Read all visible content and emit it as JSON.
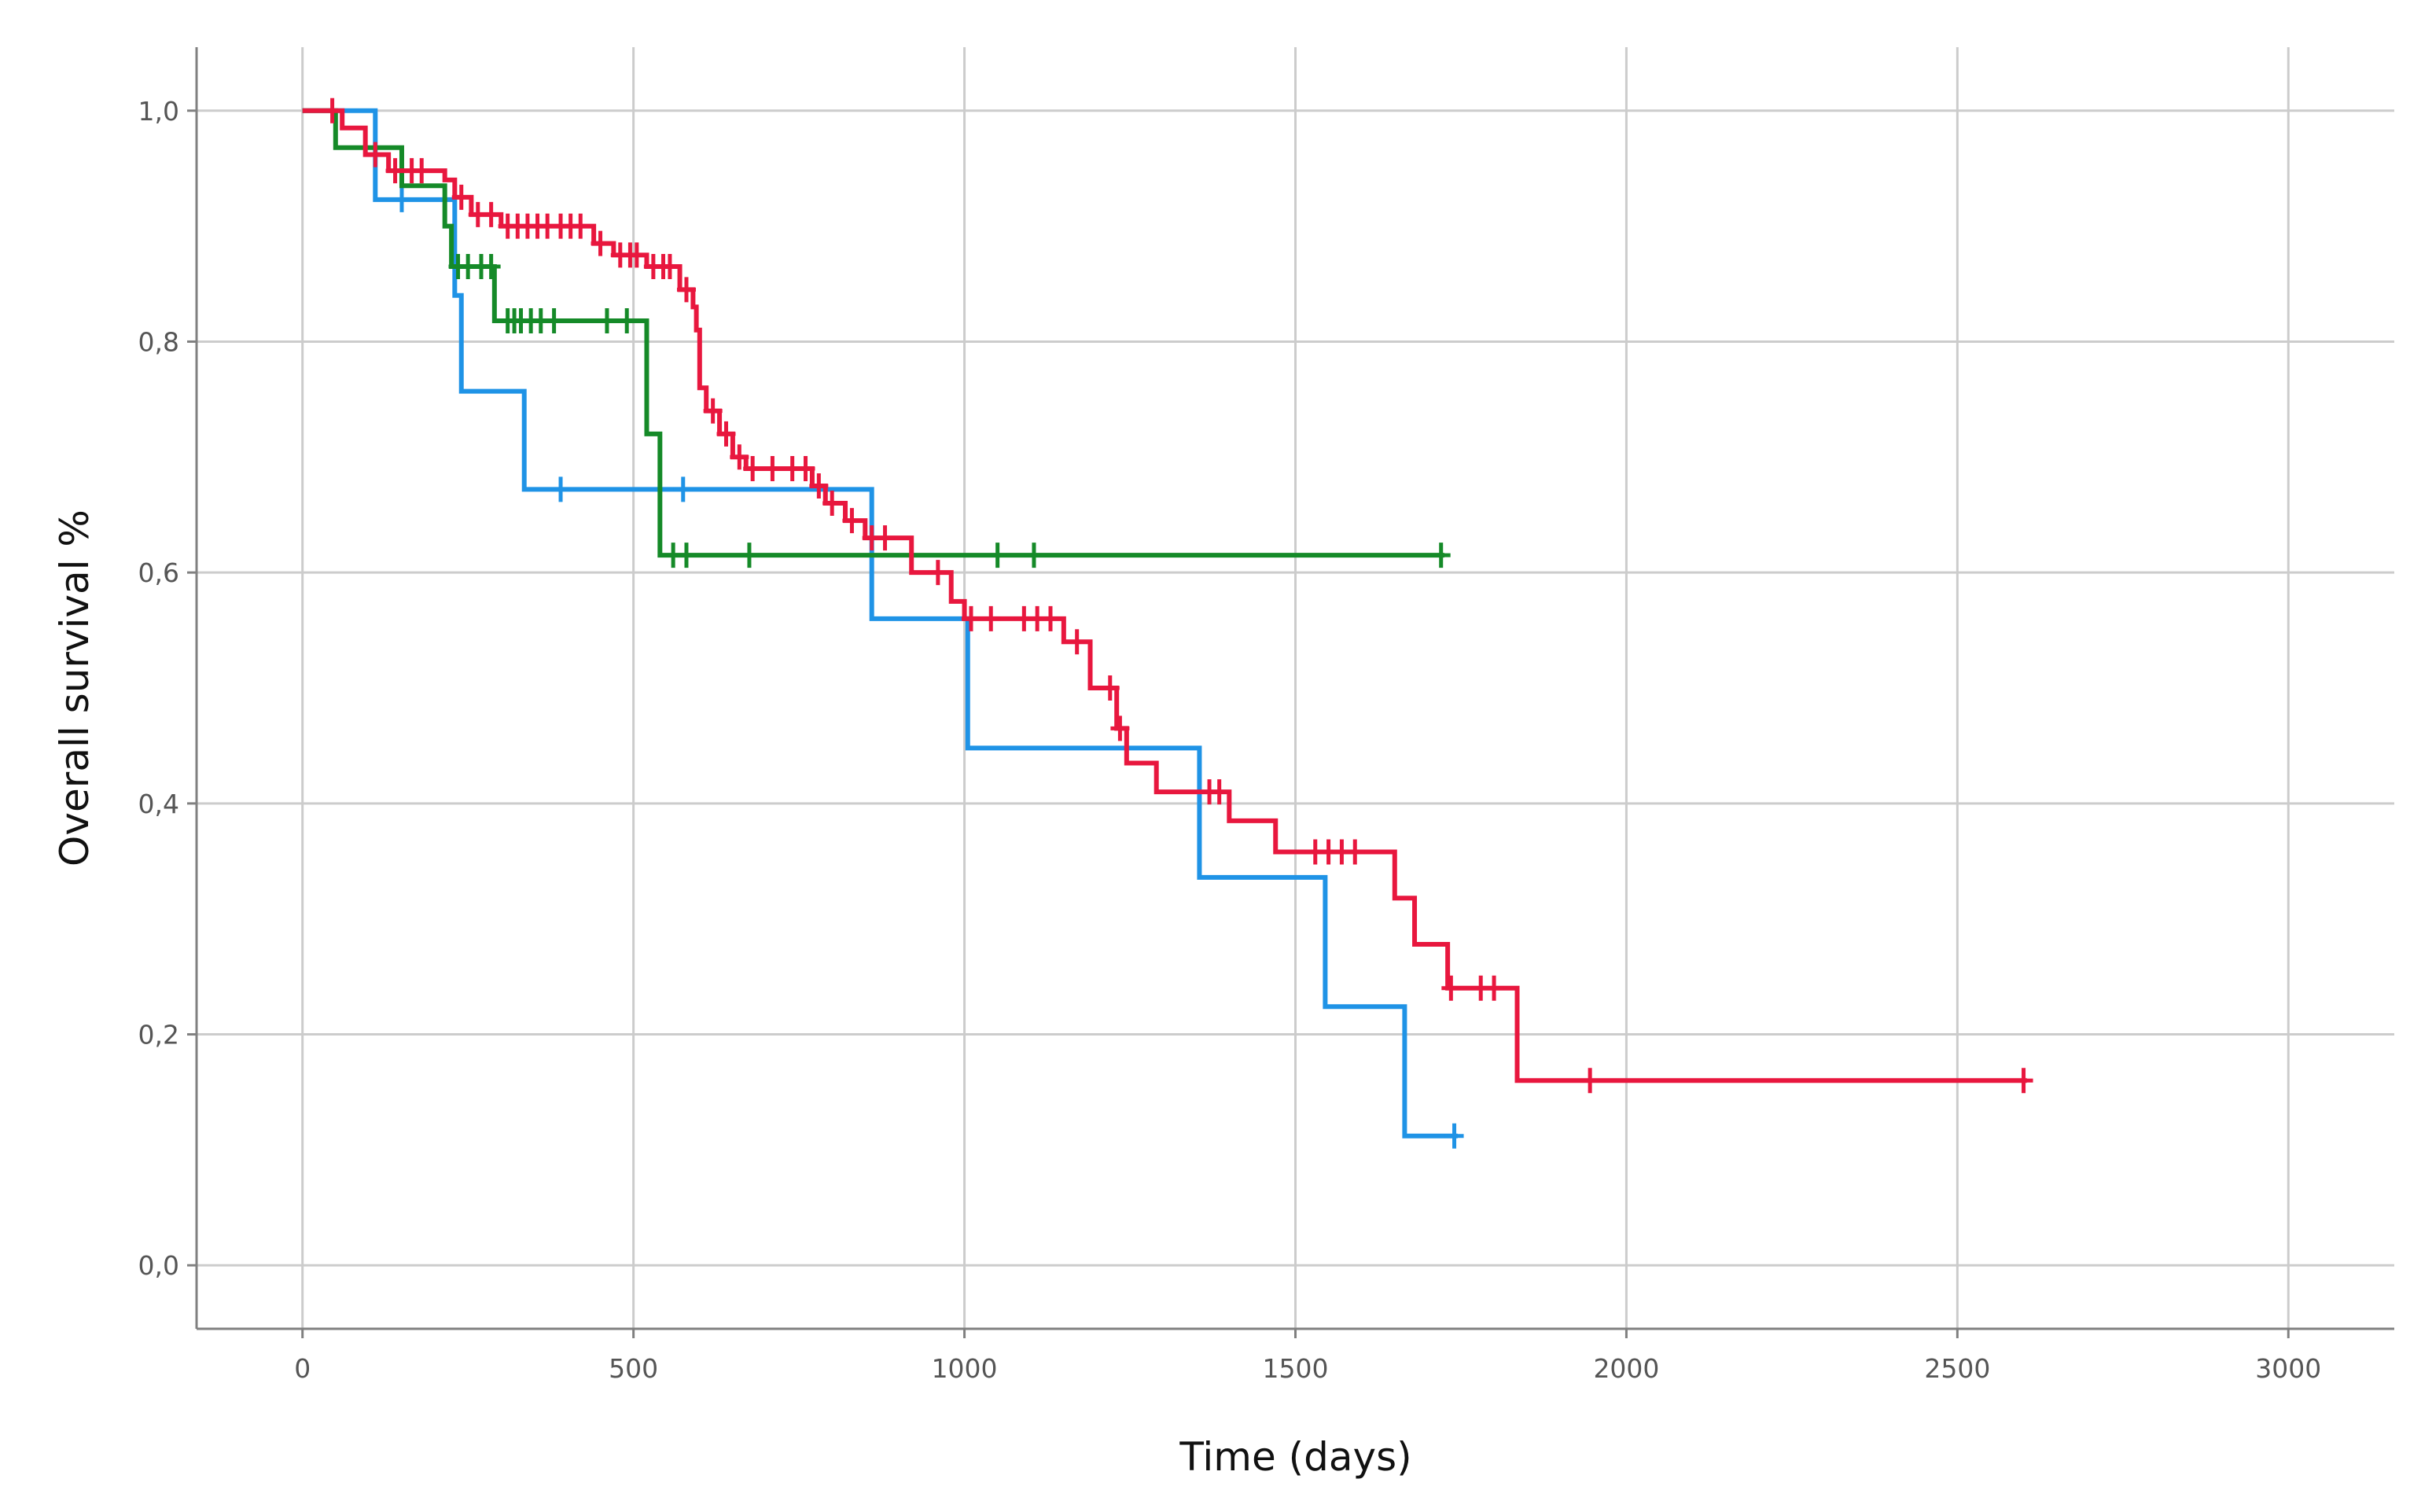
{
  "chart_data": {
    "type": "line",
    "step": true,
    "title": "",
    "xlabel": "Time (days)",
    "ylabel": "Overall survival %",
    "xlim": [
      -160,
      3160
    ],
    "ylim": [
      -0.055,
      1.055
    ],
    "x_ticks": [
      0,
      500,
      1000,
      1500,
      2000,
      2500,
      3000
    ],
    "x_tick_labels": [
      "0",
      "500",
      "1000",
      "1500",
      "2000",
      "2500",
      "3000"
    ],
    "y_ticks": [
      0,
      0.2,
      0.4,
      0.6,
      0.8,
      1.0
    ],
    "y_tick_labels": [
      "0,0",
      "0,2",
      "0,4",
      "0,6",
      "0,8",
      "1,0"
    ],
    "grid": true,
    "legend": "none",
    "series": [
      {
        "color": "#1f93e6",
        "steps": [
          [
            0,
            1.0
          ],
          [
            110,
            0.923
          ],
          [
            230,
            0.84
          ],
          [
            240,
            0.757
          ],
          [
            335,
            0.672
          ],
          [
            860,
            0.56
          ],
          [
            1005,
            0.448
          ],
          [
            1355,
            0.336
          ],
          [
            1545,
            0.224
          ],
          [
            1665,
            0.112
          ]
        ],
        "end": 1745,
        "censored": [
          [
            150,
            0.923
          ],
          [
            390,
            0.672
          ],
          [
            575,
            0.672
          ],
          [
            1740,
            0.112
          ]
        ]
      },
      {
        "color": "#158a28",
        "steps": [
          [
            0,
            1.0
          ],
          [
            50,
            0.968
          ],
          [
            150,
            0.935
          ],
          [
            215,
            0.9
          ],
          [
            225,
            0.865
          ],
          [
            290,
            0.818
          ],
          [
            520,
            0.72
          ],
          [
            540,
            0.615
          ]
        ],
        "end": 1725,
        "censored": [
          [
            235,
            0.865
          ],
          [
            250,
            0.865
          ],
          [
            270,
            0.865
          ],
          [
            285,
            0.865
          ],
          [
            310,
            0.818
          ],
          [
            320,
            0.818
          ],
          [
            330,
            0.818
          ],
          [
            345,
            0.818
          ],
          [
            360,
            0.818
          ],
          [
            380,
            0.818
          ],
          [
            460,
            0.818
          ],
          [
            490,
            0.818
          ],
          [
            560,
            0.615
          ],
          [
            580,
            0.615
          ],
          [
            675,
            0.615
          ],
          [
            1050,
            0.615
          ],
          [
            1105,
            0.615
          ],
          [
            1720,
            0.615
          ]
        ]
      },
      {
        "color": "#e8173e",
        "steps": [
          [
            0,
            1.0
          ],
          [
            60,
            0.985
          ],
          [
            95,
            0.962
          ],
          [
            130,
            0.948
          ],
          [
            215,
            0.94
          ],
          [
            230,
            0.925
          ],
          [
            255,
            0.91
          ],
          [
            300,
            0.9
          ],
          [
            440,
            0.885
          ],
          [
            470,
            0.875
          ],
          [
            520,
            0.865
          ],
          [
            570,
            0.845
          ],
          [
            590,
            0.83
          ],
          [
            595,
            0.81
          ],
          [
            600,
            0.76
          ],
          [
            610,
            0.74
          ],
          [
            630,
            0.72
          ],
          [
            650,
            0.7
          ],
          [
            670,
            0.69
          ],
          [
            770,
            0.675
          ],
          [
            790,
            0.66
          ],
          [
            820,
            0.645
          ],
          [
            850,
            0.63
          ],
          [
            920,
            0.6
          ],
          [
            980,
            0.575
          ],
          [
            1000,
            0.56
          ],
          [
            1150,
            0.54
          ],
          [
            1190,
            0.5
          ],
          [
            1230,
            0.465
          ],
          [
            1245,
            0.435
          ],
          [
            1290,
            0.41
          ],
          [
            1400,
            0.385
          ],
          [
            1470,
            0.358
          ],
          [
            1650,
            0.318
          ],
          [
            1680,
            0.278
          ],
          [
            1730,
            0.24
          ],
          [
            1835,
            0.16
          ]
        ],
        "end": 2605,
        "censored": [
          [
            45,
            1.0
          ],
          [
            110,
            0.962
          ],
          [
            140,
            0.948
          ],
          [
            165,
            0.948
          ],
          [
            180,
            0.948
          ],
          [
            240,
            0.925
          ],
          [
            265,
            0.91
          ],
          [
            285,
            0.91
          ],
          [
            310,
            0.9
          ],
          [
            325,
            0.9
          ],
          [
            340,
            0.9
          ],
          [
            355,
            0.9
          ],
          [
            370,
            0.9
          ],
          [
            390,
            0.9
          ],
          [
            405,
            0.9
          ],
          [
            420,
            0.9
          ],
          [
            450,
            0.885
          ],
          [
            480,
            0.875
          ],
          [
            495,
            0.875
          ],
          [
            505,
            0.875
          ],
          [
            530,
            0.865
          ],
          [
            545,
            0.865
          ],
          [
            555,
            0.865
          ],
          [
            580,
            0.845
          ],
          [
            620,
            0.74
          ],
          [
            640,
            0.72
          ],
          [
            660,
            0.7
          ],
          [
            680,
            0.69
          ],
          [
            710,
            0.69
          ],
          [
            740,
            0.69
          ],
          [
            760,
            0.69
          ],
          [
            780,
            0.675
          ],
          [
            800,
            0.66
          ],
          [
            830,
            0.645
          ],
          [
            860,
            0.63
          ],
          [
            880,
            0.63
          ],
          [
            960,
            0.6
          ],
          [
            1010,
            0.56
          ],
          [
            1040,
            0.56
          ],
          [
            1090,
            0.56
          ],
          [
            1110,
            0.56
          ],
          [
            1130,
            0.56
          ],
          [
            1170,
            0.54
          ],
          [
            1220,
            0.5
          ],
          [
            1235,
            0.465
          ],
          [
            1370,
            0.41
          ],
          [
            1385,
            0.41
          ],
          [
            1530,
            0.358
          ],
          [
            1550,
            0.358
          ],
          [
            1570,
            0.358
          ],
          [
            1590,
            0.358
          ],
          [
            1735,
            0.24
          ],
          [
            1780,
            0.24
          ],
          [
            1800,
            0.24
          ],
          [
            1945,
            0.16
          ],
          [
            2600,
            0.16
          ]
        ]
      }
    ]
  }
}
